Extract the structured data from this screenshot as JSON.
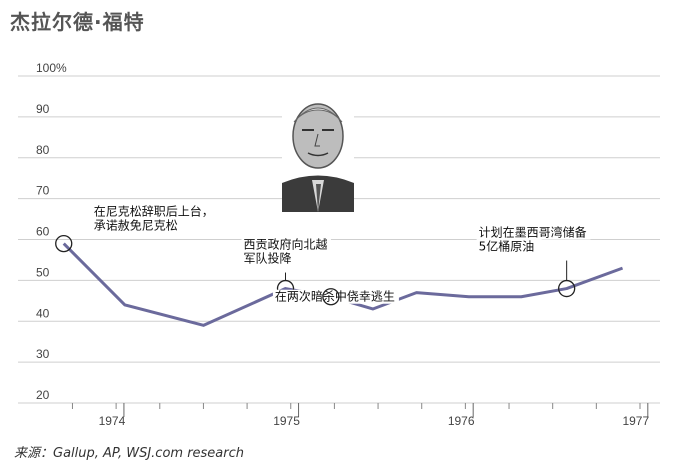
{
  "chart_data": {
    "type": "line",
    "title": "杰拉尔德·福特",
    "source": "来源：Gallup, AP, WSJ.com research",
    "ylim": [
      20,
      100
    ],
    "yticks": [
      "100%",
      "90",
      "80",
      "70",
      "60",
      "50",
      "40",
      "30",
      "20"
    ],
    "xlim": [
      1973.8,
      1977.15
    ],
    "xticks": [
      {
        "value": 1974,
        "label": "1974"
      },
      {
        "value": 1975,
        "label": "1975"
      },
      {
        "value": 1976,
        "label": "1976"
      },
      {
        "value": 1977,
        "label": "1977"
      }
    ],
    "series": [
      {
        "color": "#6b6a9c",
        "x": [
          1973.85,
          1974.2,
          1974.65,
          1975.12,
          1975.38,
          1975.62,
          1975.87,
          1976.17,
          1976.47,
          1976.73,
          1977.05
        ],
        "values": [
          59,
          44,
          39,
          48,
          46,
          43,
          47,
          46,
          46,
          48,
          53
        ]
      }
    ],
    "annotations": [
      {
        "x": 1973.85,
        "y": 59,
        "lines": [
          "在尼克松辞职后上台，",
          "承诺赦免尼克松"
        ]
      },
      {
        "x": 1975.12,
        "y": 48,
        "lines": [
          "西贡政府向北越",
          "军队投降"
        ]
      },
      {
        "x": 1975.38,
        "y": 46,
        "lines": [
          "在两次暗杀中侥幸逃生"
        ]
      },
      {
        "x": 1976.73,
        "y": 48,
        "lines": [
          "计划在墨西哥湾储备",
          "5亿桶原油"
        ]
      }
    ]
  }
}
